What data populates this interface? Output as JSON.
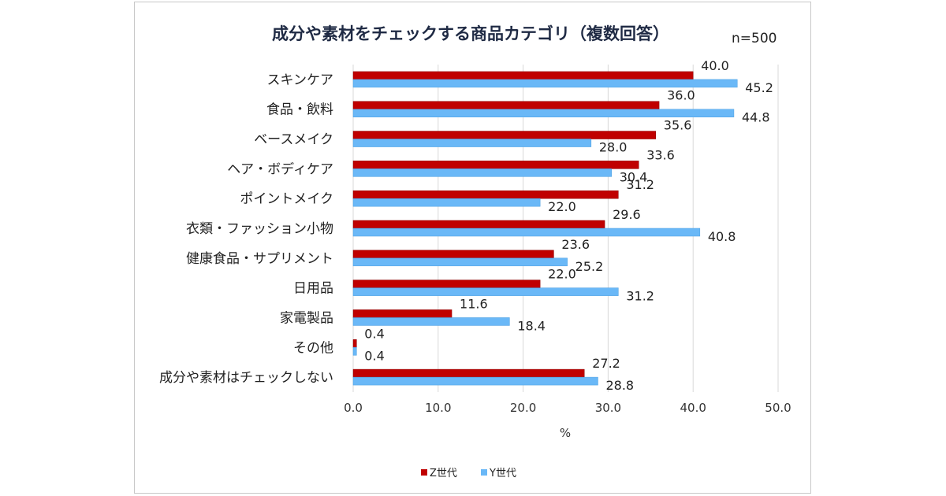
{
  "chart_data": {
    "type": "bar",
    "orientation": "horizontal",
    "title": "成分や素材をチェックする商品カテゴリ（複数回答）",
    "note": "n=500",
    "categories": [
      "スキンケア",
      "食品・飲料",
      "ベースメイク",
      "ヘア・ボディケア",
      "ポイントメイク",
      "衣類・ファッション小物",
      "健康食品・サプリメント",
      "日用品",
      "家電製品",
      "その他",
      "成分や素材はチェックしない"
    ],
    "series": [
      {
        "name": "Z世代",
        "color": "#c00000",
        "values": [
          40.0,
          36.0,
          35.6,
          33.6,
          31.2,
          29.6,
          23.6,
          22.0,
          11.6,
          0.4,
          27.2
        ]
      },
      {
        "name": "Y世代",
        "color": "#6ab8f7",
        "values": [
          45.2,
          44.8,
          28.0,
          30.4,
          22.0,
          40.8,
          25.2,
          31.2,
          18.4,
          0.4,
          28.8
        ]
      }
    ],
    "xlim": [
      0,
      50
    ],
    "xticks": [
      "0.0",
      "10.0",
      "20.0",
      "30.0",
      "40.0",
      "50.0"
    ],
    "xlabel": "%",
    "grid": true,
    "legend_position": "bottom"
  }
}
